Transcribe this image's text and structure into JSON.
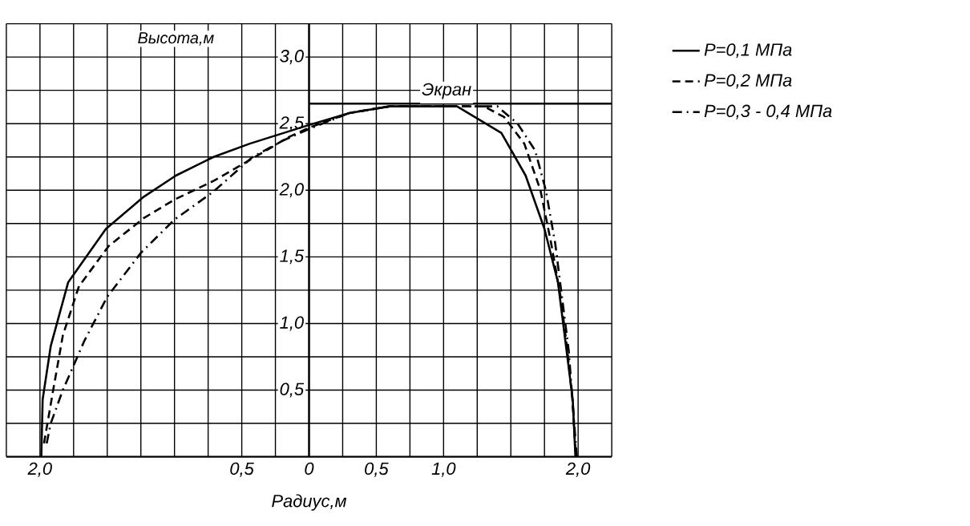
{
  "chart_data": {
    "type": "line",
    "xlabel": "Радиус,м",
    "ylabel": "Высота,м",
    "xlim": [
      -2.25,
      2.25
    ],
    "ylim": [
      0,
      3.25
    ],
    "xticks": [
      {
        "value": -2.25,
        "label": null
      },
      {
        "value": -2,
        "label": "2,0"
      },
      {
        "value": -1.75,
        "label": null
      },
      {
        "value": -1.5,
        "label": null
      },
      {
        "value": -1.25,
        "label": null
      },
      {
        "value": -1,
        "label": null
      },
      {
        "value": -0.75,
        "label": null
      },
      {
        "value": -0.5,
        "label": "0,5"
      },
      {
        "value": -0.25,
        "label": null
      },
      {
        "value": 0,
        "label": "0"
      },
      {
        "value": 0.25,
        "label": null
      },
      {
        "value": 0.5,
        "label": "0,5"
      },
      {
        "value": 0.75,
        "label": null
      },
      {
        "value": 1,
        "label": "1,0"
      },
      {
        "value": 1.25,
        "label": null
      },
      {
        "value": 1.5,
        "label": null
      },
      {
        "value": 1.75,
        "label": null
      },
      {
        "value": 2,
        "label": "2,0"
      },
      {
        "value": 2.25,
        "label": null
      }
    ],
    "yticks": [
      {
        "value": 0.25,
        "label": null
      },
      {
        "value": 0.5,
        "label": "0,5"
      },
      {
        "value": 0.75,
        "label": null
      },
      {
        "value": 1,
        "label": "1,0"
      },
      {
        "value": 1.25,
        "label": null
      },
      {
        "value": 1.5,
        "label": "1,5"
      },
      {
        "value": 1.75,
        "label": null
      },
      {
        "value": 2,
        "label": "2,0"
      },
      {
        "value": 2.25,
        "label": null
      },
      {
        "value": 2.5,
        "label": "2,5"
      },
      {
        "value": 2.75,
        "label": null
      },
      {
        "value": 3,
        "label": "3,0"
      },
      {
        "value": 3.25,
        "label": null
      }
    ],
    "grid": true,
    "legend": "right",
    "marker": "none",
    "annotations": [
      "Экран"
    ],
    "series": [
      {
        "name": "P=0,1 МПа",
        "color": "#000000",
        "line_style": "solid",
        "x": [
          -1.99,
          -1.98,
          -1.92,
          -1.79,
          -1.51,
          -1.23,
          -0.99,
          -0.71,
          -0.44,
          0,
          0.3,
          0.6,
          1.1,
          1.43,
          1.61,
          1.75,
          1.85,
          1.91,
          1.96,
          1.98
        ],
        "values": [
          0,
          0.43,
          0.83,
          1.31,
          1.71,
          1.95,
          2.11,
          2.25,
          2.35,
          2.49,
          2.58,
          2.63,
          2.63,
          2.43,
          2.11,
          1.71,
          1.31,
          0.83,
          0.43,
          0
        ]
      },
      {
        "name": "P=0,2 МПа",
        "color": "#000000",
        "line_style": "dashed",
        "x": [
          -1.97,
          -1.9,
          -1.83,
          -1.71,
          -1.49,
          -1.23,
          -1.0,
          -0.71,
          -0.4,
          -0.15,
          0,
          0.3,
          0.6,
          1.3,
          1.45,
          1.6,
          1.72,
          1.8,
          1.87,
          1.92,
          1.96,
          1.98
        ],
        "values": [
          0.1,
          0.51,
          0.91,
          1.28,
          1.58,
          1.79,
          1.93,
          2.07,
          2.25,
          2.4,
          2.47,
          2.58,
          2.63,
          2.63,
          2.55,
          2.35,
          2.0,
          1.6,
          1.2,
          0.8,
          0.4,
          0.05
        ]
      },
      {
        "name": "P=0,3 - 0,4 МПа",
        "color": "#000000",
        "line_style": "dashdotted",
        "x": [
          -1.95,
          -1.92,
          -1.83,
          -1.67,
          -1.5,
          -1.25,
          -1.0,
          -0.71,
          -0.42,
          -0.2,
          0,
          0.3,
          0.6,
          1.4,
          1.55,
          1.68,
          1.76,
          1.83,
          1.88,
          1.93,
          1.96,
          1.99
        ],
        "values": [
          0.1,
          0.25,
          0.5,
          0.87,
          1.2,
          1.53,
          1.78,
          1.99,
          2.25,
          2.37,
          2.46,
          2.58,
          2.63,
          2.63,
          2.5,
          2.3,
          2.0,
          1.6,
          1.2,
          0.8,
          0.4,
          0
        ]
      },
      {
        "type": "line",
        "color": "#000000",
        "line_style": "solid",
        "x": [
          0,
          2.25
        ],
        "values": [
          2.65,
          2.65
        ]
      }
    ]
  }
}
